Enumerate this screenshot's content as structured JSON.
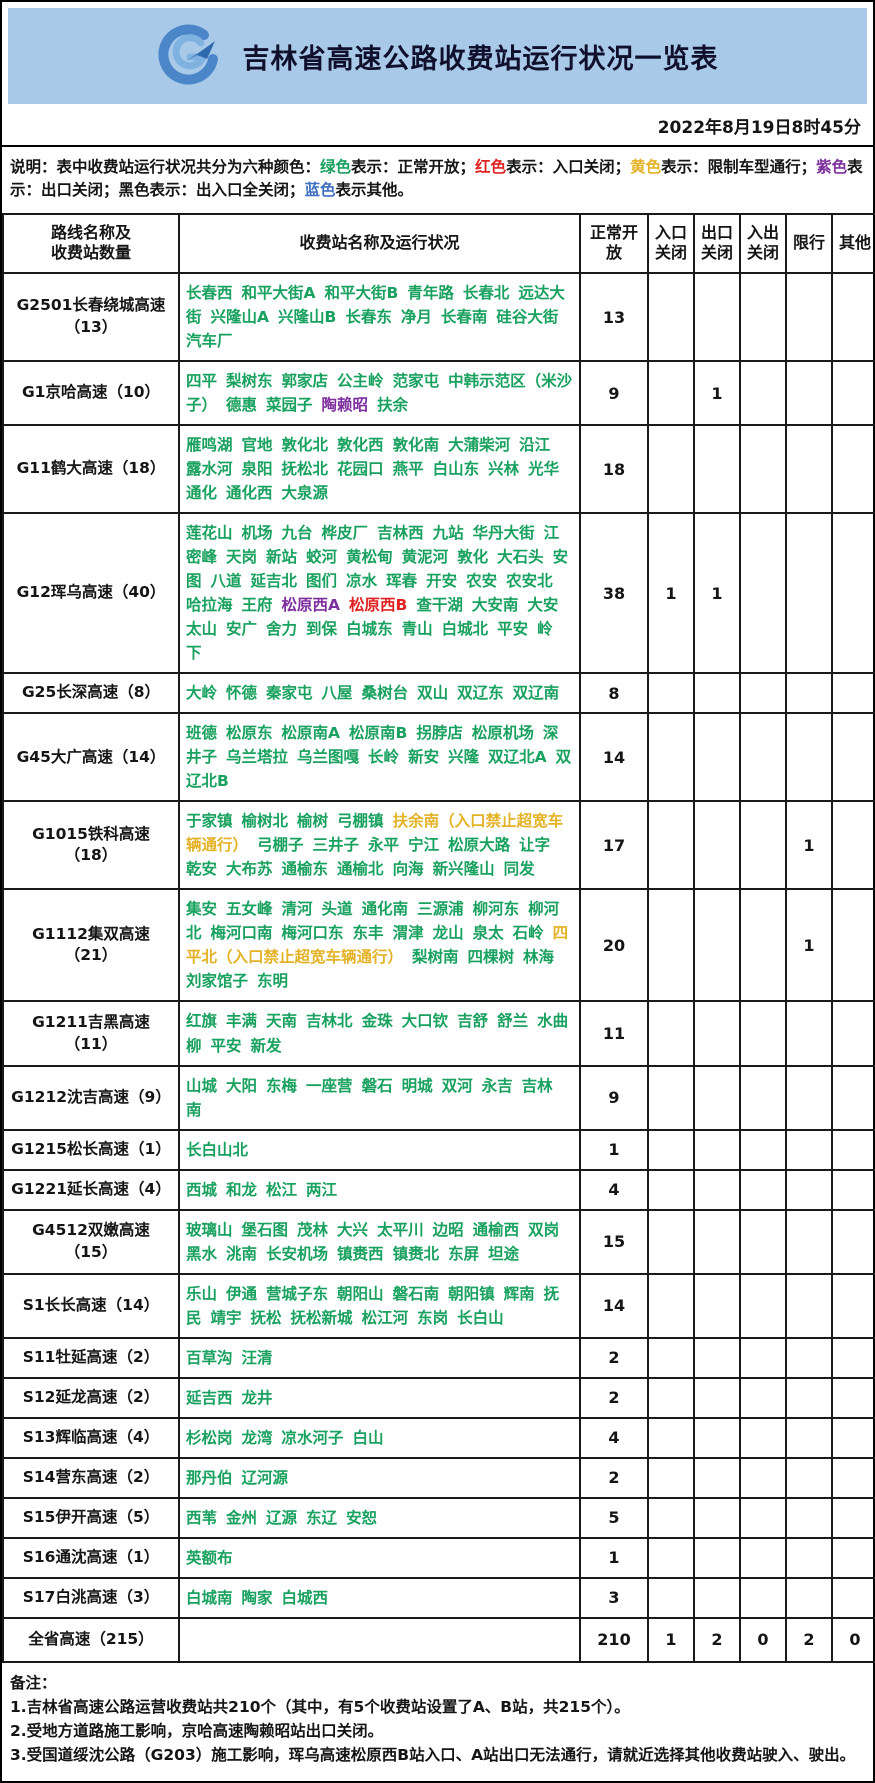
{
  "header": {
    "title": "吉林省高速公路收费站运行状况一览表",
    "datetime": "2022年8月19日8时45分",
    "logo_icon": "jilin-expressway-logo"
  },
  "colors": {
    "banner_bg": "#a9c9e9",
    "black": "#151515",
    "green": "#19a15f",
    "red": "#e02222",
    "yellow": "#e3b227",
    "purple": "#7d2f9e",
    "blue": "#3f6fc1",
    "status": {
      "normal": "#19a15f",
      "entry_closed": "#e02222",
      "exit_closed": "#7d2f9e",
      "restricted": "#e3b227"
    }
  },
  "legend": {
    "segments": [
      {
        "text": "说明：表中收费站运行状况共分为六种颜色：",
        "color": "black"
      },
      {
        "text": "绿色",
        "color": "green"
      },
      {
        "text": "表示：正常开放；",
        "color": "black"
      },
      {
        "text": "红色",
        "color": "red"
      },
      {
        "text": "表示：入口关闭；",
        "color": "black"
      },
      {
        "text": "黄色",
        "color": "yellow"
      },
      {
        "text": "表示：限制车型通行；",
        "color": "black"
      },
      {
        "text": "紫色",
        "color": "purple"
      },
      {
        "text": "表示：出口关闭；黑色表示：出入口全关闭；",
        "color": "black"
      },
      {
        "text": "蓝色",
        "color": "blue"
      },
      {
        "text": "表示其他。",
        "color": "black"
      }
    ]
  },
  "table": {
    "headers": [
      "路线名称及\n收费站数量",
      "收费站名称及运行状况",
      "正常开放",
      "入口关闭",
      "出口关闭",
      "入出关闭",
      "限行",
      "其他"
    ],
    "rows": [
      {
        "route": "G2501长春绕城高速（13）",
        "stations": [
          "长春西",
          "和平大街A",
          "和平大街B",
          "青年路",
          "长春北",
          "远达大街",
          "兴隆山A",
          "兴隆山B",
          "长春东",
          "净月",
          "长春南",
          "硅谷大街",
          "汽车厂"
        ],
        "counts": [
          "13",
          "",
          "",
          "",
          "",
          ""
        ]
      },
      {
        "route": "G1京哈高速（10）",
        "stations": [
          "四平",
          "梨树东",
          "郭家店",
          "公主岭",
          "范家屯",
          "中韩示范区（米沙子）",
          "德惠",
          "菜园子",
          [
            "陶赖昭",
            "exit_closed"
          ],
          "扶余"
        ],
        "counts": [
          "9",
          "",
          "1",
          "",
          "",
          ""
        ]
      },
      {
        "route": "G11鹤大高速（18）",
        "stations": [
          "雁鸣湖",
          "官地",
          "敦化北",
          "敦化西",
          "敦化南",
          "大蒲柴河",
          "沿江",
          "露水河",
          "泉阳",
          "抚松北",
          "花园口",
          "燕平",
          "白山东",
          "兴林",
          "光华",
          "通化",
          "通化西",
          "大泉源"
        ],
        "counts": [
          "18",
          "",
          "",
          "",
          "",
          ""
        ]
      },
      {
        "route": "G12珲乌高速（40）",
        "stations": [
          "莲花山",
          "机场",
          "九台",
          "桦皮厂",
          "吉林西",
          "九站",
          "华丹大街",
          "江密峰",
          "天岗",
          "新站",
          "蛟河",
          "黄松甸",
          "黄泥河",
          "敦化",
          "大石头",
          "安图",
          "八道",
          "延吉北",
          "图们",
          "凉水",
          "珲春",
          "开安",
          "农安",
          "农安北",
          "哈拉海",
          "王府",
          [
            "松原西A",
            "exit_closed"
          ],
          [
            "松原西B",
            "entry_closed"
          ],
          "查干湖",
          "大安南",
          "大安",
          "太山",
          "安广",
          "舍力",
          "到保",
          "白城东",
          "青山",
          "白城北",
          "平安",
          "岭下"
        ],
        "counts": [
          "38",
          "1",
          "1",
          "",
          "",
          ""
        ]
      },
      {
        "route": "G25长深高速（8）",
        "stations": [
          "大岭",
          "怀德",
          "秦家屯",
          "八屋",
          "桑树台",
          "双山",
          "双辽东",
          "双辽南"
        ],
        "counts": [
          "8",
          "",
          "",
          "",
          "",
          ""
        ]
      },
      {
        "route": "G45大广高速（14）",
        "stations": [
          "班德",
          "松原东",
          "松原南A",
          "松原南B",
          "拐脖店",
          "松原机场",
          "深井子",
          "乌兰塔拉",
          "乌兰图嘎",
          "长岭",
          "新安",
          "兴隆",
          "双辽北A",
          "双辽北B"
        ],
        "counts": [
          "14",
          "",
          "",
          "",
          "",
          ""
        ]
      },
      {
        "route": "G1015铁科高速（18）",
        "stations": [
          "于家镇",
          "榆树北",
          "榆树",
          "弓棚镇",
          [
            "扶余南（入口禁止超宽车辆通行）",
            "restricted"
          ],
          "弓棚子",
          "三井子",
          "永平",
          "宁江",
          "松原大路",
          "让字",
          "乾安",
          "大布苏",
          "通榆东",
          "通榆北",
          "向海",
          "新兴隆山",
          "同发"
        ],
        "counts": [
          "17",
          "",
          "",
          "",
          "1",
          ""
        ]
      },
      {
        "route": "G1112集双高速（21）",
        "stations": [
          "集安",
          "五女峰",
          "清河",
          "头道",
          "通化南",
          "三源浦",
          "柳河东",
          "柳河北",
          "梅河口南",
          "梅河口东",
          "东丰",
          "渭津",
          "龙山",
          "泉太",
          "石岭",
          [
            "四平北（入口禁止超宽车辆通行）",
            "restricted"
          ],
          "梨树南",
          "四棵树",
          "林海",
          "刘家馆子",
          "东明"
        ],
        "counts": [
          "20",
          "",
          "",
          "",
          "1",
          ""
        ]
      },
      {
        "route": "G1211吉黑高速（11）",
        "stations": [
          "红旗",
          "丰满",
          "天南",
          "吉林北",
          "金珠",
          "大口钦",
          "吉舒",
          "舒兰",
          "水曲柳",
          "平安",
          "新发"
        ],
        "counts": [
          "11",
          "",
          "",
          "",
          "",
          ""
        ]
      },
      {
        "route": "G1212沈吉高速（9）",
        "stations": [
          "山城",
          "大阳",
          "东梅",
          "一座营",
          "磐石",
          "明城",
          "双河",
          "永吉",
          "吉林南"
        ],
        "counts": [
          "9",
          "",
          "",
          "",
          "",
          ""
        ]
      },
      {
        "route": "G1215松长高速（1）",
        "stations": [
          "长白山北"
        ],
        "counts": [
          "1",
          "",
          "",
          "",
          "",
          ""
        ]
      },
      {
        "route": "G1221延长高速（4）",
        "stations": [
          "西城",
          "和龙",
          "松江",
          "两江"
        ],
        "counts": [
          "4",
          "",
          "",
          "",
          "",
          ""
        ]
      },
      {
        "route": "G4512双嫩高速（15）",
        "stations": [
          "玻璃山",
          "堡石图",
          "茂林",
          "大兴",
          "太平川",
          "边昭",
          "通榆西",
          "双岗",
          "黑水",
          "洮南",
          "长安机场",
          "镇赉西",
          "镇赉北",
          "东屏",
          "坦途"
        ],
        "counts": [
          "15",
          "",
          "",
          "",
          "",
          ""
        ]
      },
      {
        "route": "S1长长高速（14）",
        "stations": [
          "乐山",
          "伊通",
          "营城子东",
          "朝阳山",
          "磐石南",
          "朝阳镇",
          "辉南",
          "抚民",
          "靖宇",
          "抚松",
          "抚松新城",
          "松江河",
          "东岗",
          "长白山"
        ],
        "counts": [
          "14",
          "",
          "",
          "",
          "",
          ""
        ]
      },
      {
        "route": "S11牡延高速（2）",
        "stations": [
          "百草沟",
          "汪清"
        ],
        "counts": [
          "2",
          "",
          "",
          "",
          "",
          ""
        ]
      },
      {
        "route": "S12延龙高速（2）",
        "stations": [
          "延吉西",
          "龙井"
        ],
        "counts": [
          "2",
          "",
          "",
          "",
          "",
          ""
        ]
      },
      {
        "route": "S13辉临高速（4）",
        "stations": [
          "杉松岗",
          "龙湾",
          "凉水河子",
          "白山"
        ],
        "counts": [
          "4",
          "",
          "",
          "",
          "",
          ""
        ]
      },
      {
        "route": "S14营东高速（2）",
        "stations": [
          "那丹伯",
          "辽河源"
        ],
        "counts": [
          "2",
          "",
          "",
          "",
          "",
          ""
        ]
      },
      {
        "route": "S15伊开高速（5）",
        "stations": [
          "西苇",
          "金州",
          "辽源",
          "东辽",
          "安恕"
        ],
        "counts": [
          "5",
          "",
          "",
          "",
          "",
          ""
        ]
      },
      {
        "route": "S16通沈高速（1）",
        "stations": [
          "英额布"
        ],
        "counts": [
          "1",
          "",
          "",
          "",
          "",
          ""
        ]
      },
      {
        "route": "S17白洮高速（3）",
        "stations": [
          "白城南",
          "陶家",
          "白城西"
        ],
        "counts": [
          "3",
          "",
          "",
          "",
          "",
          ""
        ]
      },
      {
        "route": "全省高速（215）",
        "stations": [],
        "counts": [
          "210",
          "1",
          "2",
          "0",
          "2",
          "0"
        ],
        "total": true
      }
    ]
  },
  "notes": {
    "label": "备注：",
    "items": [
      "1.吉林省高速公路运营收费站共210个（其中，有5个收费站设置了A、B站，共215个）。",
      "2.受地方道路施工影响，京哈高速陶赖昭站出口关闭。",
      "3.受国道绥沈公路（G203）施工影响，珲乌高速松原西B站入口、A站出口无法通行，请就近选择其他收费站驶入、驶出。"
    ]
  }
}
